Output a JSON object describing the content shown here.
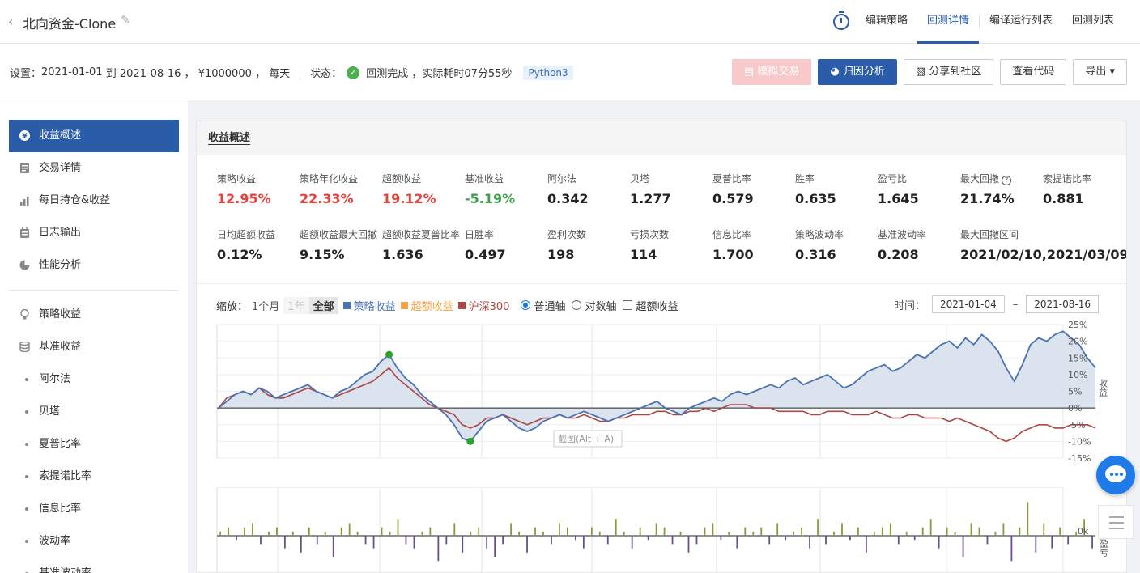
{
  "header": {
    "back_icon": "chevron-left-icon",
    "title": "北向资金-Clone",
    "edit_icon": "pencil-icon",
    "nav": [
      {
        "label": "编辑策略"
      },
      {
        "label": "回测详情",
        "active": true
      },
      {
        "label": "编译运行列表"
      },
      {
        "label": "回测列表"
      }
    ]
  },
  "settings": {
    "label": "设置：",
    "start_date": "2021-01-01",
    "to": "到",
    "end_date": "2021-08-16 ，",
    "capital": "¥1000000 ，",
    "freq": "每天",
    "status_label": "状态：",
    "status": "回测完成",
    "elapsed": "，实际耗时07分55秒",
    "language": "Python3"
  },
  "actions": {
    "simulate": "模拟交易",
    "attribution": "归因分析",
    "share": "分享到社区",
    "view_code": "查看代码",
    "export": "导出"
  },
  "sidebar": {
    "items": [
      {
        "label": "收益概述",
        "icon": "yen-icon"
      },
      {
        "label": "交易详情",
        "icon": "document-icon"
      },
      {
        "label": "每日持仓&收益",
        "icon": "bar-chart-icon"
      },
      {
        "label": "日志输出",
        "icon": "calendar-icon"
      },
      {
        "label": "性能分析",
        "icon": "pie-chart-icon"
      },
      {
        "label": "策略收益",
        "icon": "lightbulb-icon"
      },
      {
        "label": "基准收益",
        "icon": "database-icon"
      }
    ],
    "subitems": [
      "阿尔法",
      "贝塔",
      "夏普比率",
      "索提诺比率",
      "信息比率",
      "波动率",
      "基准波动率"
    ]
  },
  "panel": {
    "title": "收益概述",
    "metrics_row1": [
      {
        "label": "策略收益",
        "value": "12.95%",
        "color": "red"
      },
      {
        "label": "策略年化收益",
        "value": "22.33%",
        "color": "red"
      },
      {
        "label": "超额收益",
        "value": "19.12%",
        "color": "red"
      },
      {
        "label": "基准收益",
        "value": "-5.19%",
        "color": "green"
      },
      {
        "label": "阿尔法",
        "value": "0.342"
      },
      {
        "label": "贝塔",
        "value": "1.277"
      },
      {
        "label": "夏普比率",
        "value": "0.579"
      },
      {
        "label": "胜率",
        "value": "0.635"
      },
      {
        "label": "盈亏比",
        "value": "1.645"
      },
      {
        "label": "最大回撤",
        "value": "21.74%",
        "help": true
      },
      {
        "label": "索提诺比率",
        "value": "0.881"
      }
    ],
    "metrics_row2": [
      {
        "label": "日均超额收益",
        "value": "0.12%"
      },
      {
        "label": "超额收益最大回撤",
        "value": "9.15%"
      },
      {
        "label": "超额收益夏普比率",
        "value": "1.636"
      },
      {
        "label": "日胜率",
        "value": "0.497"
      },
      {
        "label": "盈利次数",
        "value": "198"
      },
      {
        "label": "亏损次数",
        "value": "114"
      },
      {
        "label": "信息比率",
        "value": "1.700"
      },
      {
        "label": "策略波动率",
        "value": "0.316"
      },
      {
        "label": "基准波动率",
        "value": "0.208"
      },
      {
        "label": "最大回撤区间",
        "value": "2021/02/10,2021/03/09"
      }
    ]
  },
  "chart_controls": {
    "zoom_label": "缩放：",
    "zoom": [
      "1个月",
      "1年",
      "全部"
    ],
    "legend": [
      {
        "name": "策略收益",
        "color": "#4a72b0"
      },
      {
        "name": "超额收益",
        "color": "#f5a443"
      },
      {
        "name": "沪深300",
        "color": "#aa4643"
      }
    ],
    "axis_options": [
      "普通轴",
      "对数轴"
    ],
    "excess_toggle": "超额收益",
    "time_label": "时间：",
    "from_date": "2021-01-04",
    "to_date": "2021-08-16",
    "range_dash": "–",
    "watermark": "截图(Alt + A)"
  },
  "chart_data": [
    {
      "type": "line",
      "ylabel": "收益",
      "ylim": [
        -15,
        25
      ],
      "yticks": [
        "25%",
        "20%",
        "15%",
        "10%",
        "5%",
        "0%",
        "-5%",
        "-10%",
        "-15%"
      ],
      "series": [
        {
          "name": "策略收益",
          "color": "#4a72b0",
          "values": [
            0,
            2,
            4,
            5,
            4,
            6,
            5,
            3,
            4,
            5,
            6,
            7,
            5,
            4,
            3,
            5,
            6,
            8,
            10,
            11,
            14,
            16,
            12,
            9,
            7,
            4,
            2,
            0,
            -2,
            -5,
            -9,
            -10,
            -7,
            -4,
            -3,
            -2,
            -4,
            -6,
            -7,
            -6,
            -4,
            -3,
            -2,
            -3,
            -2,
            -1,
            -2,
            -3,
            -4,
            -3,
            -2,
            -1,
            0,
            1,
            2,
            0,
            -1,
            -2,
            0,
            1,
            2,
            3,
            2,
            4,
            5,
            4,
            5,
            6,
            7,
            6,
            8,
            9,
            7,
            8,
            9,
            10,
            8,
            6,
            7,
            9,
            11,
            12,
            13,
            11,
            12,
            14,
            16,
            15,
            17,
            19,
            20,
            18,
            21,
            19,
            22,
            20,
            17,
            12,
            8,
            13,
            19,
            21,
            20,
            22,
            23,
            21,
            19,
            15,
            12
          ]
        },
        {
          "name": "沪深300",
          "color": "#aa4643",
          "values": [
            0,
            3,
            4,
            5,
            4,
            6,
            4,
            3,
            3,
            4,
            5,
            6,
            5,
            4,
            3,
            4,
            5,
            6,
            7,
            8,
            10,
            12,
            9,
            7,
            5,
            3,
            1,
            0,
            -1,
            -2,
            -5,
            -6,
            -5,
            -3,
            -3,
            -2,
            -3,
            -4,
            -5,
            -4,
            -3,
            -3,
            -2,
            -3,
            -3,
            -2,
            -3,
            -4,
            -4,
            -3,
            -3,
            -2,
            -2,
            -2,
            -1,
            -1,
            -2,
            -2,
            -1,
            -1,
            0,
            -1,
            0,
            1,
            1,
            1,
            0,
            0,
            0,
            -1,
            -1,
            -1,
            -1,
            -2,
            -2,
            -1,
            -1,
            -1,
            -2,
            -2,
            -2,
            -1,
            -2,
            -3,
            -3,
            -2,
            -2,
            -3,
            -3,
            -3,
            -4,
            -3,
            -4,
            -5,
            -6,
            -7,
            -9,
            -10,
            -9,
            -7,
            -6,
            -5,
            -5,
            -6,
            -6,
            -5,
            -5,
            -5,
            -6
          ]
        }
      ],
      "markers": [
        {
          "label": "max",
          "index": 21
        },
        {
          "label": "min",
          "index": 31
        }
      ]
    },
    {
      "type": "bar",
      "ylabel": "盈亏",
      "yticks": [
        "0k"
      ],
      "values": [
        1,
        2,
        -1,
        2,
        3,
        -2,
        1,
        2,
        -3,
        1,
        -4,
        2,
        -2,
        1,
        -5,
        2,
        3,
        1,
        -2,
        -3,
        2,
        1,
        4,
        -2,
        -3,
        1,
        2,
        -6,
        -2,
        3,
        -4,
        1,
        2,
        -3,
        -5,
        -2,
        3,
        1,
        -4,
        2,
        1,
        -2,
        3,
        2,
        -1,
        -3,
        2,
        1,
        -2,
        4,
        1,
        -3,
        2,
        -1,
        3,
        2,
        -2,
        1,
        -4,
        -2,
        2,
        3,
        -1,
        1,
        -3,
        2,
        1,
        2,
        -2,
        3,
        -1,
        1,
        2,
        -3,
        4,
        -2,
        1,
        3,
        -1,
        2,
        -4,
        1,
        2,
        3,
        -2,
        1,
        -1,
        2,
        4,
        -3,
        2,
        1,
        -5,
        3,
        2,
        -2,
        1,
        3,
        -6,
        2,
        8,
        -4,
        3,
        -3,
        2,
        -2,
        1,
        4,
        -3
      ]
    }
  ]
}
